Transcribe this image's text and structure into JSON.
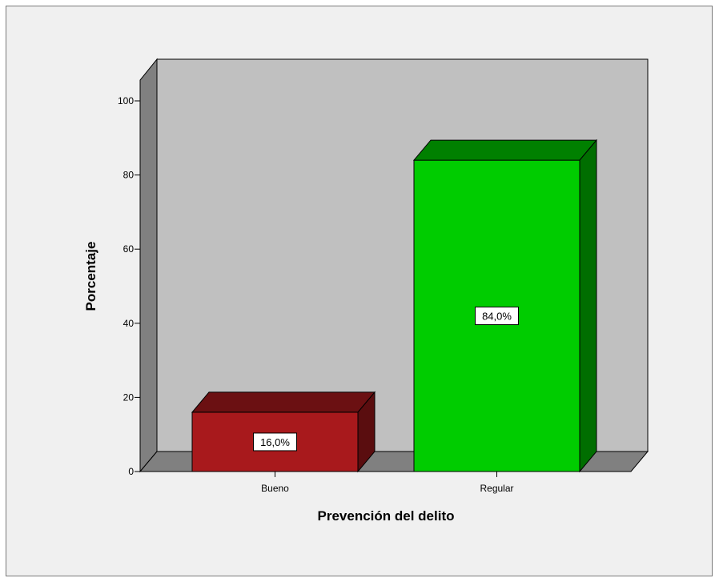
{
  "chart_data": {
    "type": "bar",
    "categories": [
      "Bueno",
      "Regular"
    ],
    "values": [
      16.0,
      84.0
    ],
    "data_labels": [
      "16,0%",
      "84,0%"
    ],
    "bar_colors": [
      "#a8191c",
      "#00cc00"
    ],
    "bar_top_colors": [
      "#6b1012",
      "#008000"
    ],
    "bar_side_colors": [
      "#5a0d0f",
      "#006e00"
    ],
    "xlabel": "Prevención del delito",
    "ylabel": "Porcentaje",
    "ylim": [
      0,
      100
    ],
    "yticks": [
      "0",
      "20",
      "40",
      "60",
      "80",
      "100"
    ],
    "grid": false,
    "style": "3d",
    "wall_color": "#c0c0c0",
    "floor_color": "#808080"
  }
}
